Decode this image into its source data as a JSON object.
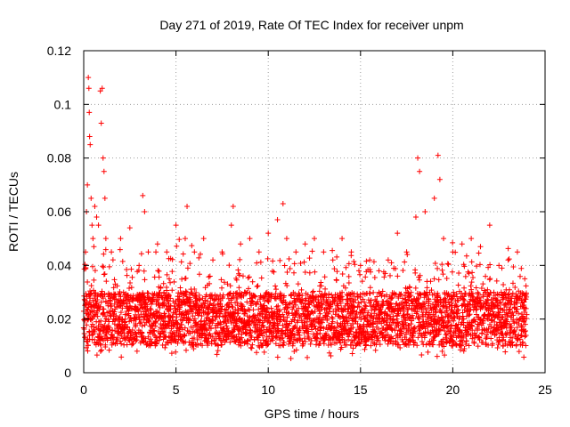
{
  "chart_data": {
    "type": "scatter",
    "title": "Day 271 of 2019, Rate Of TEC Index for receiver unpm",
    "xlabel": "GPS time / hours",
    "ylabel": "ROTI / TECUs",
    "xlim": [
      0,
      25
    ],
    "ylim": [
      0,
      0.12
    ],
    "x_ticks": [
      0,
      5,
      10,
      15,
      20,
      25
    ],
    "x_tick_labels": [
      "0",
      "5",
      "10",
      "15",
      "20",
      "25"
    ],
    "y_ticks": [
      0,
      0.02,
      0.04,
      0.06,
      0.08,
      0.1,
      0.12
    ],
    "y_tick_labels": [
      "0",
      "0.02",
      "0.04",
      "0.06",
      "0.08",
      "0.1",
      "0.12"
    ],
    "grid": true,
    "marker": "+",
    "color": "#ff0000",
    "series": [
      {
        "name": "ROTI",
        "points": [
          [
            0.05,
            0.02
          ],
          [
            0.1,
            0.045
          ],
          [
            0.15,
            0.06
          ],
          [
            0.2,
            0.07
          ],
          [
            0.25,
            0.11
          ],
          [
            0.28,
            0.106
          ],
          [
            0.3,
            0.097
          ],
          [
            0.32,
            0.088
          ],
          [
            0.35,
            0.085
          ],
          [
            0.4,
            0.065
          ],
          [
            0.45,
            0.055
          ],
          [
            0.5,
            0.05
          ],
          [
            0.55,
            0.047
          ],
          [
            0.6,
            0.062
          ],
          [
            0.7,
            0.058
          ],
          [
            0.8,
            0.055
          ],
          [
            0.9,
            0.105
          ],
          [
            0.95,
            0.093
          ],
          [
            1.0,
            0.106
          ],
          [
            1.05,
            0.08
          ],
          [
            1.1,
            0.075
          ],
          [
            1.15,
            0.065
          ],
          [
            1.2,
            0.05
          ],
          [
            1.5,
            0.045
          ],
          [
            2.0,
            0.05
          ],
          [
            2.5,
            0.054
          ],
          [
            3.0,
            0.04
          ],
          [
            3.2,
            0.066
          ],
          [
            3.3,
            0.06
          ],
          [
            3.5,
            0.045
          ],
          [
            4.0,
            0.048
          ],
          [
            4.5,
            0.045
          ],
          [
            5.0,
            0.055
          ],
          [
            5.5,
            0.05
          ],
          [
            5.6,
            0.062
          ],
          [
            6.0,
            0.045
          ],
          [
            6.5,
            0.05
          ],
          [
            7.0,
            0.042
          ],
          [
            7.5,
            0.045
          ],
          [
            8.0,
            0.055
          ],
          [
            8.1,
            0.062
          ],
          [
            8.5,
            0.048
          ],
          [
            9.0,
            0.05
          ],
          [
            9.5,
            0.045
          ],
          [
            10.0,
            0.052
          ],
          [
            10.5,
            0.057
          ],
          [
            10.8,
            0.063
          ],
          [
            11.0,
            0.05
          ],
          [
            11.5,
            0.045
          ],
          [
            12.0,
            0.048
          ],
          [
            12.5,
            0.05
          ],
          [
            13.0,
            0.045
          ],
          [
            13.5,
            0.042
          ],
          [
            14.0,
            0.05
          ],
          [
            14.5,
            0.045
          ],
          [
            15.0,
            0.04
          ],
          [
            15.5,
            0.042
          ],
          [
            16.0,
            0.038
          ],
          [
            16.5,
            0.042
          ],
          [
            17.0,
            0.052
          ],
          [
            17.5,
            0.045
          ],
          [
            18.0,
            0.058
          ],
          [
            18.1,
            0.08
          ],
          [
            18.2,
            0.075
          ],
          [
            18.5,
            0.06
          ],
          [
            19.0,
            0.065
          ],
          [
            19.2,
            0.081
          ],
          [
            19.3,
            0.072
          ],
          [
            19.5,
            0.05
          ],
          [
            20.0,
            0.045
          ],
          [
            20.5,
            0.048
          ],
          [
            21.0,
            0.05
          ],
          [
            21.5,
            0.047
          ],
          [
            22.0,
            0.055
          ],
          [
            22.5,
            0.04
          ],
          [
            23.0,
            0.042
          ],
          [
            23.5,
            0.045
          ],
          [
            23.9,
            0.035
          ]
        ]
      }
    ],
    "background_band": {
      "description_free": true,
      "baseline_low": 0.01,
      "baseline_high": 0.03
    }
  }
}
